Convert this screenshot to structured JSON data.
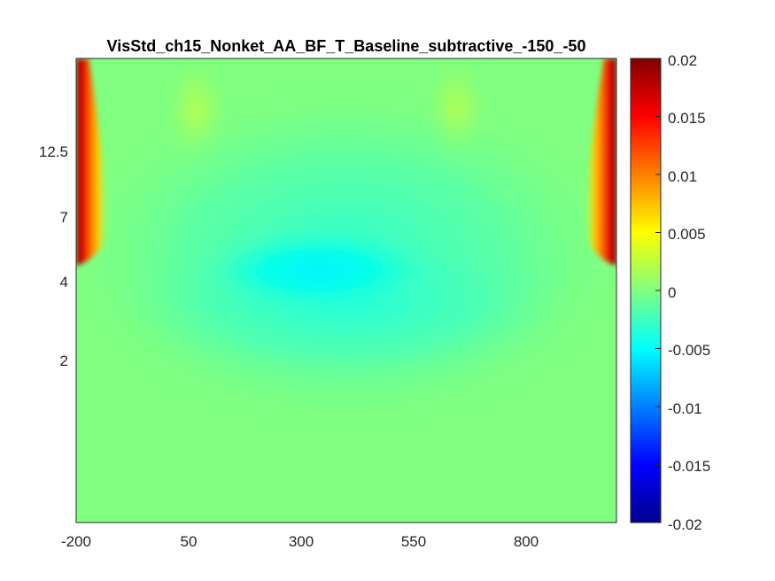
{
  "chart_data": {
    "type": "heatmap",
    "title": "VisStd_ch15_Nonket_AA_BF_T_Baseline_subtractive_-150_-50",
    "xlabel": "",
    "ylabel": "",
    "x_ticks": [
      -200,
      50,
      300,
      550,
      800
    ],
    "xlim": [
      -200,
      1000
    ],
    "y_ticks": [
      "12.5",
      "7",
      "4",
      "2"
    ],
    "colormap": "jet",
    "clim": [
      -0.02,
      0.02
    ],
    "colorbar_ticks": [
      "0.02",
      "0.015",
      "0.01",
      "0.005",
      "0",
      "-0.005",
      "-0.01",
      "-0.015",
      "-0.02"
    ],
    "features": [
      {
        "name": "edge",
        "x": -170,
        "freq_range": "5-20",
        "value": 0.02
      },
      {
        "name": "edge",
        "x": 970,
        "freq_range": "5-20",
        "value": 0.02
      },
      {
        "name": "trough",
        "x": 330,
        "freq": 4,
        "value": -0.006
      },
      {
        "name": "hump",
        "x": 60,
        "freq": 15,
        "value": 0.002
      },
      {
        "name": "hump",
        "x": 620,
        "freq": 15,
        "value": 0.002
      }
    ]
  }
}
